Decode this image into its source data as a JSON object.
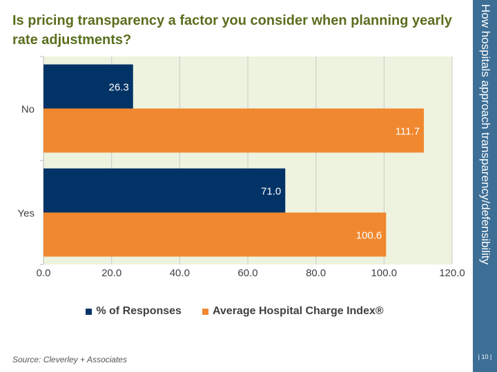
{
  "title": "Is pricing transparency a factor you consider when planning yearly rate adjustments?",
  "side_label": "How hospitals approach transparency/defensibility",
  "page_number": "| 10 |",
  "source": "Source: Cleverley + Associates",
  "colors": {
    "series1": "#023366",
    "series2": "#f0882f",
    "plot_bg": "#eef3df",
    "band": "#3d6e96"
  },
  "chart_data": {
    "type": "bar",
    "orientation": "horizontal",
    "categories": [
      "No",
      "Yes"
    ],
    "series": [
      {
        "name": "% of Responses",
        "values": [
          26.3,
          71.0
        ],
        "labels": [
          "26.3",
          "71.0"
        ]
      },
      {
        "name": "Average Hospital Charge Index®",
        "values": [
          111.7,
          100.6
        ],
        "labels": [
          "111.7",
          "100.6"
        ]
      }
    ],
    "xlim": [
      0,
      120
    ],
    "xticks": [
      "0.0",
      "20.0",
      "40.0",
      "60.0",
      "80.0",
      "100.0",
      "120.0"
    ],
    "grid": true,
    "legend_position": "bottom"
  }
}
